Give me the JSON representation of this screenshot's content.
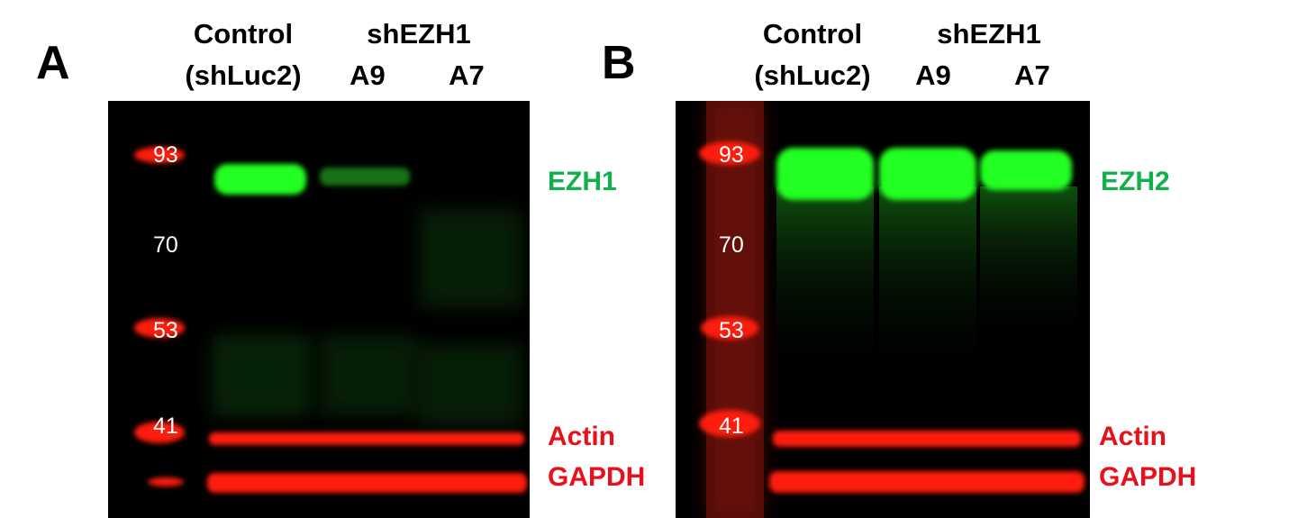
{
  "colors": {
    "target_label": "#10b04a",
    "loading_label": "#e8101a",
    "green_signal": "#22ff22",
    "red_signal": "#ff1a10",
    "background": "#000000"
  },
  "lane_headers": {
    "control_line1": "Control",
    "control_line2": "(shLuc2)",
    "knockdown": "shEZH1",
    "clone_a9": "A9",
    "clone_a7": "A7"
  },
  "panels": [
    {
      "letter": "A",
      "markers": [
        "93",
        "70",
        "53",
        "41"
      ],
      "target": "EZH1",
      "loading_controls": [
        "Actin",
        "GAPDH"
      ]
    },
    {
      "letter": "B",
      "markers": [
        "93",
        "70",
        "53",
        "41"
      ],
      "target": "EZH2",
      "loading_controls": [
        "Actin",
        "GAPDH"
      ]
    }
  ]
}
